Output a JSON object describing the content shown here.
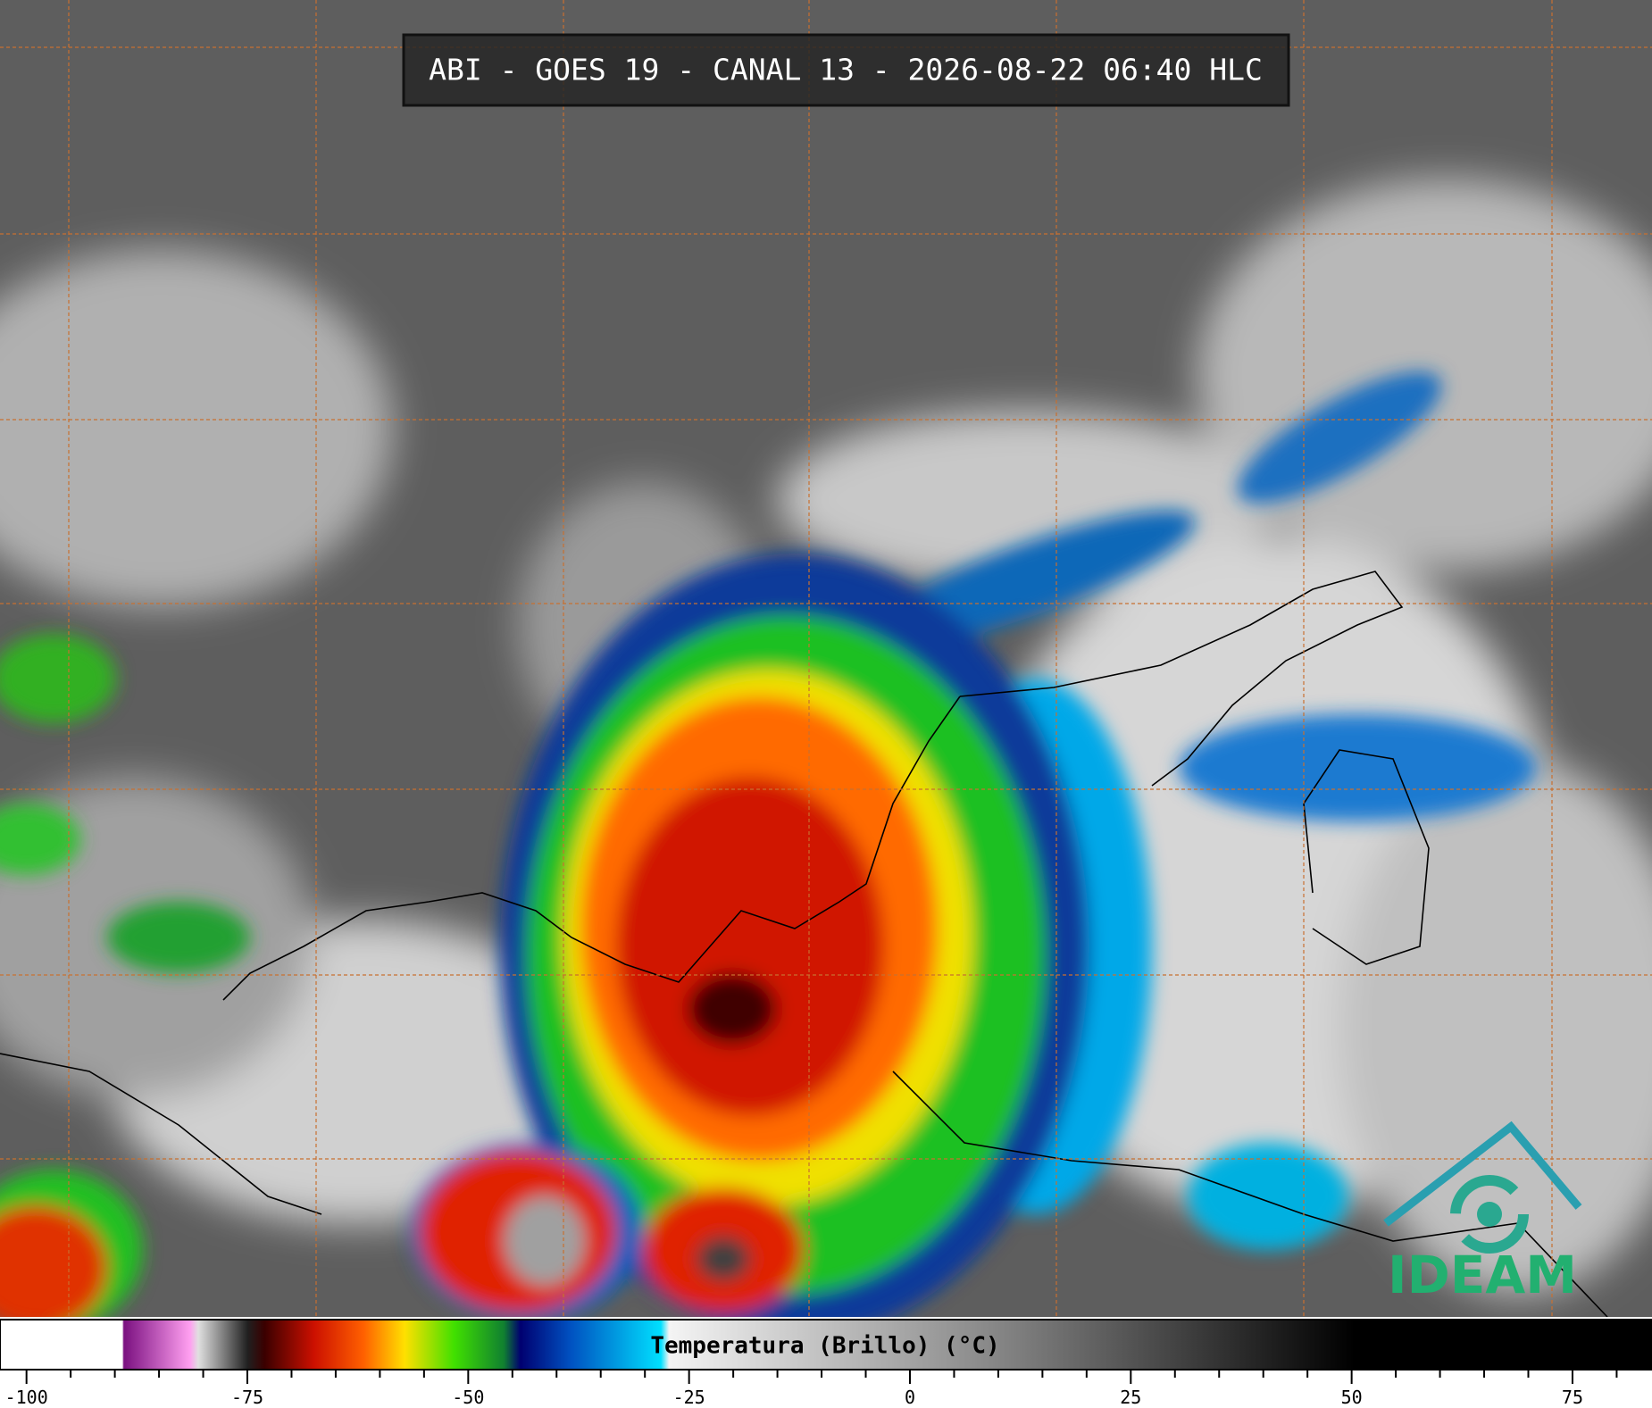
{
  "header": {
    "title": "ABI - GOES 19 - CANAL 13 - 2026-08-22 06:40 HLC"
  },
  "colorbar": {
    "label": "Temperatura (Brillo) (°C)",
    "lim": [
      -103,
      84
    ],
    "ticks": [
      -100,
      -75,
      -50,
      -25,
      0,
      25,
      50,
      75
    ],
    "minor_ticks": [
      -95,
      -90,
      -85,
      -80,
      -70,
      -65,
      -60,
      -55,
      -45,
      -40,
      -35,
      -30,
      -20,
      -15,
      -10,
      -5,
      5,
      10,
      15,
      20,
      30,
      35,
      40,
      45,
      55,
      60,
      65,
      70,
      80
    ]
  },
  "logo": {
    "text": "IDEAM"
  }
}
